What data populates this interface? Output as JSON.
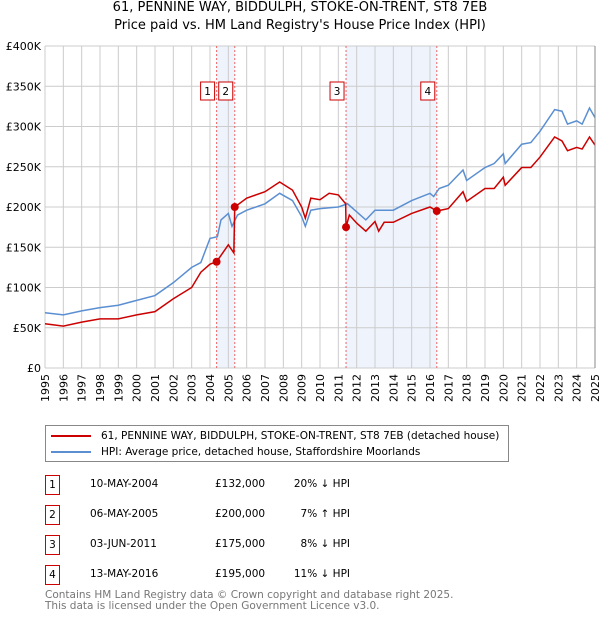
{
  "title": "61, PENNINE WAY, BIDDULPH, STOKE-ON-TRENT, ST8 7EB",
  "subtitle": "Price paid vs. HM Land Registry's House Price Index (HPI)",
  "chart_data": {
    "type": "line",
    "ylim": [
      0,
      400000
    ],
    "xlim": [
      1995,
      2025
    ],
    "yticks": [
      {
        "v": 0,
        "label": "£0"
      },
      {
        "v": 50000,
        "label": "£50K"
      },
      {
        "v": 100000,
        "label": "£100K"
      },
      {
        "v": 150000,
        "label": "£150K"
      },
      {
        "v": 200000,
        "label": "£200K"
      },
      {
        "v": 250000,
        "label": "£250K"
      },
      {
        "v": 300000,
        "label": "£300K"
      },
      {
        "v": 350000,
        "label": "£350K"
      },
      {
        "v": 400000,
        "label": "£400K"
      }
    ],
    "xticks": [
      "1995",
      "1996",
      "1997",
      "1998",
      "1999",
      "2000",
      "2001",
      "2002",
      "2003",
      "2004",
      "2005",
      "2006",
      "2007",
      "2008",
      "2009",
      "2010",
      "2011",
      "2012",
      "2013",
      "2014",
      "2015",
      "2016",
      "2017",
      "2018",
      "2019",
      "2020",
      "2021",
      "2022",
      "2023",
      "2024",
      "2025"
    ],
    "colors": {
      "property": "#cc0000",
      "hpi": "#5b8fd1",
      "shade": "#eef3fc"
    },
    "series": [
      {
        "name": "property",
        "x": [
          1995,
          1996,
          1997,
          1998,
          1999,
          2000,
          2001,
          2002,
          2003,
          2003.5,
          2004,
          2004.36,
          2005,
          2005.3,
          2005.35,
          2006,
          2007,
          2007.8,
          2008.5,
          2009,
          2009.2,
          2009.5,
          2010,
          2010.5,
          2011,
          2011.4,
          2011.42,
          2011.6,
          2012,
          2012.5,
          2013,
          2013.2,
          2013.5,
          2014,
          2015,
          2016,
          2016.37,
          2017,
          2017.8,
          2018,
          2019,
          2019.5,
          2020,
          2020.1,
          2021,
          2021.5,
          2022,
          2022.8,
          2023.2,
          2023.5,
          2024,
          2024.3,
          2024.7,
          2025
        ],
        "y": [
          55000,
          52000,
          57000,
          61000,
          61000,
          66000,
          70000,
          86000,
          100000,
          119000,
          129000,
          132000,
          153000,
          143000,
          200000,
          211000,
          219000,
          231000,
          221000,
          200000,
          186000,
          211000,
          209000,
          217000,
          215000,
          204000,
          175000,
          190000,
          180000,
          170000,
          182000,
          170000,
          181000,
          181000,
          192000,
          200000,
          195000,
          198000,
          219000,
          207000,
          223000,
          223000,
          237000,
          227000,
          249000,
          249000,
          262000,
          287000,
          282000,
          270000,
          274000,
          272000,
          287000,
          277000
        ]
      },
      {
        "name": "hpi",
        "x": [
          1995,
          1996,
          1997,
          1998,
          1999,
          2000,
          2001,
          2002,
          2003,
          2003.5,
          2004,
          2004.4,
          2004.6,
          2005,
          2005.2,
          2005.5,
          2006,
          2007,
          2007.8,
          2008.5,
          2009,
          2009.2,
          2009.5,
          2010,
          2011,
          2011.5,
          2012,
          2012.5,
          2013,
          2014,
          2015,
          2016,
          2016.2,
          2016.5,
          2017,
          2017.8,
          2018,
          2019,
          2019.5,
          2020,
          2020.1,
          2021,
          2021.5,
          2022,
          2022.8,
          2023.2,
          2023.5,
          2024,
          2024.3,
          2024.7,
          2025
        ],
        "y": [
          68700,
          66000,
          71000,
          75000,
          78000,
          84000,
          90000,
          106000,
          125000,
          131000,
          161000,
          163000,
          184000,
          192000,
          176000,
          190000,
          196000,
          204000,
          217000,
          208000,
          188000,
          176000,
          196000,
          198000,
          200000,
          204000,
          194000,
          184000,
          196000,
          196000,
          208000,
          217000,
          213000,
          223000,
          227000,
          246000,
          233000,
          249000,
          254000,
          266000,
          254000,
          278000,
          280000,
          294000,
          321000,
          319000,
          303000,
          307000,
          303000,
          323000,
          311000
        ]
      }
    ],
    "sales": [
      {
        "n": "1",
        "x": 2004.36,
        "y": 132000,
        "date": "10-MAY-2004",
        "price": "£132,000",
        "hpi": "20% ↓ HPI"
      },
      {
        "n": "2",
        "x": 2005.35,
        "y": 200000,
        "date": "06-MAY-2005",
        "price": "£200,000",
        "hpi": "7% ↑ HPI"
      },
      {
        "n": "3",
        "x": 2011.42,
        "y": 175000,
        "date": "03-JUN-2011",
        "price": "£175,000",
        "hpi": "8% ↓ HPI"
      },
      {
        "n": "4",
        "x": 2016.37,
        "y": 195000,
        "date": "13-MAY-2016",
        "price": "£195,000",
        "hpi": "11% ↓ HPI"
      }
    ],
    "legend": [
      "61, PENNINE WAY, BIDDULPH, STOKE-ON-TRENT, ST8 7EB (detached house)",
      "HPI: Average price, detached house, Staffordshire Moorlands"
    ]
  },
  "footer": [
    "Contains HM Land Registry data © Crown copyright and database right 2025.",
    "This data is licensed under the Open Government Licence v3.0."
  ]
}
